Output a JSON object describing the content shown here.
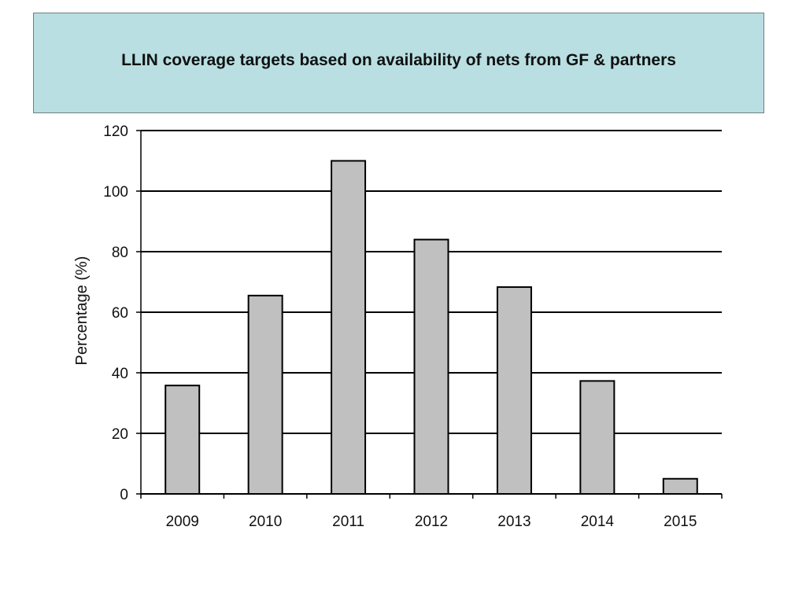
{
  "title": "LLIN coverage targets based on availability of nets from GF & partners",
  "colors": {
    "title_background": "#b9dfe2",
    "bar_fill": "#c0c0c0",
    "bar_stroke": "#000000",
    "gridline": "#000000"
  },
  "chart_data": {
    "type": "bar",
    "categories": [
      "2009",
      "2010",
      "2011",
      "2012",
      "2013",
      "2014",
      "2015"
    ],
    "values": [
      35.8,
      65.5,
      110,
      84,
      68.3,
      37.3,
      5
    ],
    "xlabel": "",
    "ylabel": "Percentage (%)",
    "ylim": [
      0,
      120
    ],
    "yticks": [
      0,
      20,
      40,
      60,
      80,
      100,
      120
    ],
    "grid": true,
    "legend": "none"
  }
}
